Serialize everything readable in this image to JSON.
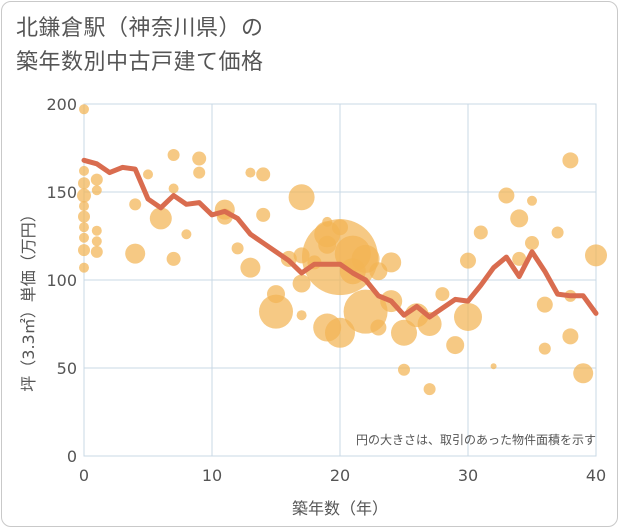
{
  "title_line1": "北鎌倉駅（神奈川県）の",
  "title_line2": "築年数別中古戸建て価格",
  "chart_data": {
    "type": "scatter",
    "title": "北鎌倉駅（神奈川県）の築年数別中古戸建て価格",
    "xlabel": "築年数（年）",
    "ylabel": "坪（3.3㎡）単価（万円）",
    "xlim": [
      0,
      40
    ],
    "ylim": [
      0,
      200
    ],
    "xticks": [
      0,
      10,
      20,
      30,
      40
    ],
    "yticks": [
      0,
      50,
      100,
      150,
      200
    ],
    "grid": true,
    "note": "円の大きさは、取引のあった物件面積を示す",
    "colors": {
      "bubble": "#f2b454",
      "line": "#d96c4f",
      "grid": "#c9d8e6",
      "text": "#555555"
    },
    "bubbles": [
      {
        "x": 0,
        "y": 197,
        "s": 5
      },
      {
        "x": 0,
        "y": 162,
        "s": 5
      },
      {
        "x": 0,
        "y": 155,
        "s": 6
      },
      {
        "x": 0,
        "y": 148,
        "s": 7
      },
      {
        "x": 0,
        "y": 142,
        "s": 5
      },
      {
        "x": 0,
        "y": 136,
        "s": 6
      },
      {
        "x": 0,
        "y": 130,
        "s": 5
      },
      {
        "x": 0,
        "y": 124,
        "s": 5
      },
      {
        "x": 0,
        "y": 117,
        "s": 6
      },
      {
        "x": 0,
        "y": 107,
        "s": 5
      },
      {
        "x": 1,
        "y": 157,
        "s": 6
      },
      {
        "x": 1,
        "y": 151,
        "s": 5
      },
      {
        "x": 1,
        "y": 128,
        "s": 5
      },
      {
        "x": 1,
        "y": 122,
        "s": 5
      },
      {
        "x": 1,
        "y": 116,
        "s": 6
      },
      {
        "x": 4,
        "y": 143,
        "s": 6
      },
      {
        "x": 4,
        "y": 115,
        "s": 10
      },
      {
        "x": 5,
        "y": 160,
        "s": 5
      },
      {
        "x": 6,
        "y": 135,
        "s": 11
      },
      {
        "x": 7,
        "y": 171,
        "s": 6
      },
      {
        "x": 7,
        "y": 152,
        "s": 5
      },
      {
        "x": 7,
        "y": 112,
        "s": 7
      },
      {
        "x": 8,
        "y": 126,
        "s": 5
      },
      {
        "x": 9,
        "y": 169,
        "s": 7
      },
      {
        "x": 9,
        "y": 161,
        "s": 6
      },
      {
        "x": 11,
        "y": 140,
        "s": 10
      },
      {
        "x": 11,
        "y": 136,
        "s": 8
      },
      {
        "x": 12,
        "y": 118,
        "s": 6
      },
      {
        "x": 13,
        "y": 161,
        "s": 5
      },
      {
        "x": 13,
        "y": 107,
        "s": 10
      },
      {
        "x": 14,
        "y": 160,
        "s": 7
      },
      {
        "x": 14,
        "y": 137,
        "s": 7
      },
      {
        "x": 15,
        "y": 92,
        "s": 9
      },
      {
        "x": 15,
        "y": 82,
        "s": 17
      },
      {
        "x": 16,
        "y": 112,
        "s": 8
      },
      {
        "x": 17,
        "y": 147,
        "s": 13
      },
      {
        "x": 17,
        "y": 114,
        "s": 8
      },
      {
        "x": 17,
        "y": 98,
        "s": 9
      },
      {
        "x": 17,
        "y": 80,
        "s": 5
      },
      {
        "x": 18,
        "y": 110,
        "s": 7
      },
      {
        "x": 19,
        "y": 133,
        "s": 5
      },
      {
        "x": 19,
        "y": 126,
        "s": 13
      },
      {
        "x": 19,
        "y": 120,
        "s": 9
      },
      {
        "x": 19,
        "y": 73,
        "s": 14
      },
      {
        "x": 20,
        "y": 130,
        "s": 8
      },
      {
        "x": 20,
        "y": 113,
        "s": 38
      },
      {
        "x": 20,
        "y": 70,
        "s": 15
      },
      {
        "x": 21,
        "y": 115,
        "s": 18
      },
      {
        "x": 21,
        "y": 105,
        "s": 13
      },
      {
        "x": 22,
        "y": 112,
        "s": 14
      },
      {
        "x": 22,
        "y": 82,
        "s": 22
      },
      {
        "x": 23,
        "y": 105,
        "s": 9
      },
      {
        "x": 23,
        "y": 73,
        "s": 8
      },
      {
        "x": 24,
        "y": 110,
        "s": 10
      },
      {
        "x": 24,
        "y": 88,
        "s": 11
      },
      {
        "x": 25,
        "y": 70,
        "s": 13
      },
      {
        "x": 25,
        "y": 49,
        "s": 6
      },
      {
        "x": 26,
        "y": 80,
        "s": 12
      },
      {
        "x": 27,
        "y": 75,
        "s": 12
      },
      {
        "x": 27,
        "y": 38,
        "s": 6
      },
      {
        "x": 28,
        "y": 92,
        "s": 7
      },
      {
        "x": 29,
        "y": 63,
        "s": 9
      },
      {
        "x": 30,
        "y": 111,
        "s": 8
      },
      {
        "x": 30,
        "y": 79,
        "s": 14
      },
      {
        "x": 31,
        "y": 127,
        "s": 7
      },
      {
        "x": 32,
        "y": 51,
        "s": 3
      },
      {
        "x": 33,
        "y": 148,
        "s": 8
      },
      {
        "x": 34,
        "y": 135,
        "s": 9
      },
      {
        "x": 34,
        "y": 112,
        "s": 7
      },
      {
        "x": 35,
        "y": 145,
        "s": 5
      },
      {
        "x": 35,
        "y": 121,
        "s": 7
      },
      {
        "x": 36,
        "y": 86,
        "s": 8
      },
      {
        "x": 36,
        "y": 61,
        "s": 6
      },
      {
        "x": 37,
        "y": 127,
        "s": 6
      },
      {
        "x": 38,
        "y": 168,
        "s": 8
      },
      {
        "x": 38,
        "y": 91,
        "s": 6
      },
      {
        "x": 38,
        "y": 68,
        "s": 8
      },
      {
        "x": 39,
        "y": 47,
        "s": 10
      },
      {
        "x": 40,
        "y": 114,
        "s": 11
      }
    ],
    "trend": {
      "x": [
        0,
        1,
        2,
        3,
        4,
        5,
        6,
        7,
        8,
        9,
        10,
        11,
        12,
        13,
        14,
        15,
        16,
        17,
        18,
        19,
        20,
        21,
        22,
        23,
        24,
        25,
        26,
        27,
        28,
        29,
        30,
        31,
        32,
        33,
        34,
        35,
        36,
        37,
        38,
        39,
        40
      ],
      "y": [
        168,
        166,
        161,
        164,
        163,
        146,
        141,
        148,
        143,
        144,
        137,
        139,
        135,
        126,
        121,
        116,
        111,
        104,
        109,
        109,
        109,
        104,
        100,
        91,
        88,
        80,
        85,
        79,
        84,
        89,
        88,
        97,
        107,
        113,
        102,
        116,
        105,
        92,
        91,
        91,
        81
      ]
    }
  }
}
